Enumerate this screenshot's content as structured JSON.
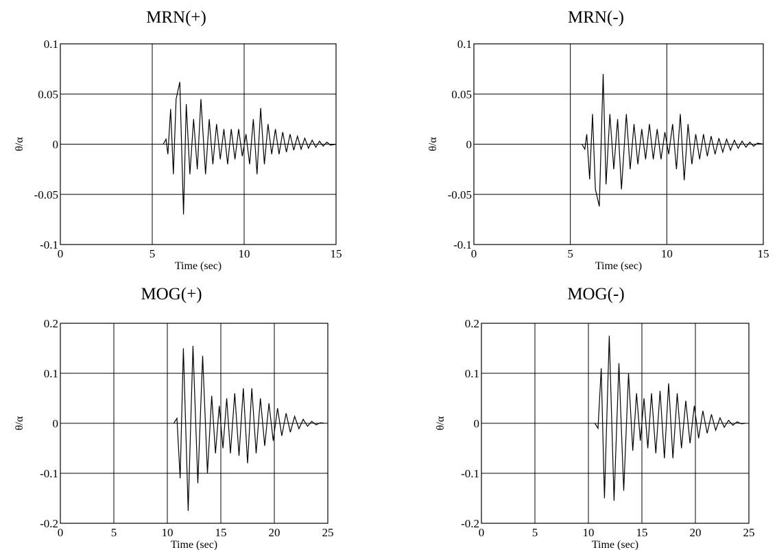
{
  "chart_data": [
    {
      "type": "line",
      "title": "MRN(+)",
      "xlabel": "Time (sec)",
      "ylabel": "θ/α",
      "xlim": [
        0,
        15
      ],
      "ylim": [
        -0.1,
        0.1
      ],
      "xticks": [
        "0",
        "5",
        "10",
        "15"
      ],
      "yticks": [
        "-0.1",
        "-0.05",
        "0",
        "0.05",
        "0.1"
      ],
      "grid": true,
      "series": [
        {
          "x": [
            5.6,
            5.75,
            5.85,
            6.0,
            6.15,
            6.3,
            6.5,
            6.7,
            6.85,
            7.05,
            7.25,
            7.45,
            7.65,
            7.9,
            8.1,
            8.3,
            8.5,
            8.7,
            8.9,
            9.1,
            9.3,
            9.5,
            9.7,
            9.9,
            10.1,
            10.3,
            10.5,
            10.7,
            10.9,
            11.1,
            11.3,
            11.5,
            11.7,
            11.9,
            12.1,
            12.3,
            12.5,
            12.7,
            12.9,
            13.1,
            13.3,
            13.5,
            13.7,
            13.9,
            14.1,
            14.3,
            14.5,
            14.7,
            15.0
          ],
          "y": [
            0.0,
            0.005,
            -0.01,
            0.035,
            -0.03,
            0.045,
            0.062,
            -0.07,
            0.04,
            -0.03,
            0.025,
            -0.025,
            0.045,
            -0.03,
            0.025,
            -0.02,
            0.02,
            -0.015,
            0.015,
            -0.02,
            0.015,
            -0.015,
            0.015,
            -0.012,
            0.01,
            -0.02,
            0.025,
            -0.03,
            0.036,
            -0.02,
            0.02,
            -0.01,
            0.015,
            -0.01,
            0.012,
            -0.008,
            0.01,
            -0.006,
            0.008,
            -0.005,
            0.006,
            -0.004,
            0.004,
            -0.003,
            0.003,
            -0.002,
            0.002,
            -0.001,
            0.0
          ]
        }
      ]
    },
    {
      "type": "line",
      "title": "MRN(-)",
      "xlabel": "Time (sec)",
      "ylabel": "θ/α",
      "xlim": [
        0,
        15
      ],
      "ylim": [
        -0.1,
        0.1
      ],
      "xticks": [
        "0",
        "5",
        "10",
        "15"
      ],
      "yticks": [
        "-0.1",
        "-0.05",
        "0",
        "0.05",
        "0.1"
      ],
      "grid": true,
      "series": [
        {
          "x": [
            5.6,
            5.75,
            5.85,
            6.0,
            6.15,
            6.3,
            6.5,
            6.7,
            6.85,
            7.05,
            7.25,
            7.45,
            7.65,
            7.9,
            8.1,
            8.3,
            8.5,
            8.7,
            8.9,
            9.1,
            9.3,
            9.5,
            9.7,
            9.9,
            10.1,
            10.3,
            10.5,
            10.7,
            10.9,
            11.1,
            11.3,
            11.5,
            11.7,
            11.9,
            12.1,
            12.3,
            12.5,
            12.7,
            12.9,
            13.1,
            13.3,
            13.5,
            13.7,
            13.9,
            14.1,
            14.3,
            14.5,
            14.7,
            15.0
          ],
          "y": [
            0.0,
            -0.005,
            0.01,
            -0.035,
            0.03,
            -0.045,
            -0.062,
            0.07,
            -0.04,
            0.03,
            -0.025,
            0.025,
            -0.045,
            0.03,
            -0.025,
            0.02,
            -0.02,
            0.015,
            -0.015,
            0.02,
            -0.015,
            0.015,
            -0.015,
            0.012,
            -0.01,
            0.02,
            -0.025,
            0.03,
            -0.036,
            0.02,
            -0.02,
            0.01,
            -0.015,
            0.01,
            -0.012,
            0.008,
            -0.01,
            0.006,
            -0.008,
            0.005,
            -0.006,
            0.004,
            -0.004,
            0.003,
            -0.003,
            0.002,
            -0.002,
            0.001,
            0.0
          ]
        }
      ]
    },
    {
      "type": "line",
      "title": "MOG(+)",
      "xlabel": "Time (sec)",
      "ylabel": "θ/α",
      "xlim": [
        0,
        25
      ],
      "ylim": [
        -0.2,
        0.2
      ],
      "xticks": [
        "0",
        "5",
        "10",
        "15",
        "20",
        "25"
      ],
      "yticks": [
        "-0.2",
        "-0.1",
        "0",
        "0.1",
        "0.2"
      ],
      "grid": true,
      "series": [
        {
          "x": [
            10.6,
            10.9,
            11.2,
            11.5,
            11.95,
            12.4,
            12.85,
            13.3,
            13.75,
            14.15,
            14.5,
            14.85,
            15.2,
            15.55,
            15.9,
            16.3,
            16.7,
            17.1,
            17.5,
            17.9,
            18.3,
            18.7,
            19.1,
            19.5,
            19.9,
            20.3,
            20.7,
            21.1,
            21.5,
            21.9,
            22.3,
            22.7,
            23.1,
            23.5,
            23.9,
            24.3,
            24.7
          ],
          "y": [
            0.0,
            0.01,
            -0.11,
            0.15,
            -0.175,
            0.155,
            -0.12,
            0.135,
            -0.1,
            0.055,
            -0.06,
            0.035,
            -0.05,
            0.05,
            -0.06,
            0.06,
            -0.065,
            0.07,
            -0.08,
            0.07,
            -0.06,
            0.05,
            -0.045,
            0.04,
            -0.035,
            0.03,
            -0.025,
            0.02,
            -0.018,
            0.014,
            -0.011,
            0.008,
            -0.006,
            0.004,
            -0.003,
            0.001,
            0.0
          ]
        }
      ]
    },
    {
      "type": "line",
      "title": "MOG(-)",
      "xlabel": "Time (sec)",
      "ylabel": "θ/α",
      "xlim": [
        0,
        25
      ],
      "ylim": [
        -0.2,
        0.2
      ],
      "xticks": [
        "0",
        "5",
        "10",
        "15",
        "20",
        "25"
      ],
      "yticks": [
        "-0.2",
        "-0.1",
        "0",
        "0.1",
        "0.2"
      ],
      "grid": true,
      "series": [
        {
          "x": [
            10.6,
            10.9,
            11.2,
            11.5,
            11.95,
            12.4,
            12.85,
            13.3,
            13.75,
            14.15,
            14.5,
            14.85,
            15.2,
            15.55,
            15.9,
            16.3,
            16.7,
            17.1,
            17.5,
            17.9,
            18.3,
            18.7,
            19.1,
            19.5,
            19.9,
            20.3,
            20.7,
            21.1,
            21.5,
            21.9,
            22.3,
            22.7,
            23.1,
            23.5,
            23.9,
            24.3,
            24.7
          ],
          "y": [
            0.0,
            -0.01,
            0.11,
            -0.15,
            0.175,
            -0.155,
            0.12,
            -0.135,
            0.1,
            -0.055,
            0.06,
            -0.035,
            0.05,
            -0.05,
            0.06,
            -0.06,
            0.065,
            -0.07,
            0.08,
            -0.07,
            0.06,
            -0.05,
            0.045,
            -0.04,
            0.035,
            -0.03,
            0.025,
            -0.02,
            0.018,
            -0.014,
            0.011,
            -0.008,
            0.006,
            -0.004,
            0.003,
            -0.001,
            0.0
          ]
        }
      ]
    }
  ]
}
